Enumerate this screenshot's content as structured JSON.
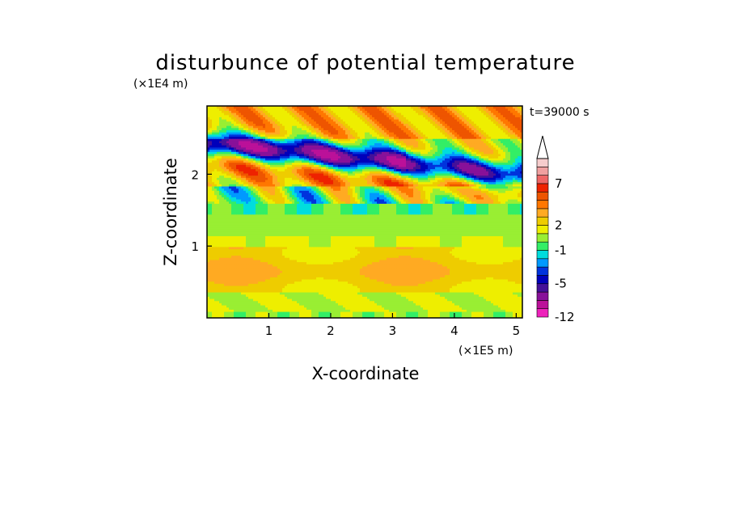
{
  "chart_data": {
    "type": "heatmap",
    "title": "disturbunce of potential temperature",
    "time_label": "t=39000 s",
    "xlabel": "X-coordinate",
    "ylabel": "Z-coordinate",
    "x_unit": "(×1E5 m)",
    "y_unit": "(×1E4 m)",
    "xlim": [
      0,
      5.1
    ],
    "ylim": [
      0,
      2.95
    ],
    "x_ticks": [
      "1",
      "2",
      "3",
      "4",
      "5"
    ],
    "y_ticks": [
      "1",
      "2"
    ],
    "x_tick_values": [
      1,
      2,
      3,
      4,
      5
    ],
    "y_tick_values": [
      1,
      2
    ],
    "colorbar": {
      "levels": [
        -12,
        -10,
        -8,
        -6,
        -5,
        -4,
        -3,
        -2,
        -1,
        0,
        1,
        2,
        3,
        4,
        5,
        6,
        7,
        8,
        9,
        10
      ],
      "labels": [
        "-12",
        "-5",
        "-1",
        "2",
        "7"
      ],
      "label_values": [
        -12,
        -5,
        -1,
        2,
        7
      ],
      "colors": [
        "#ee22bb",
        "#bb1199",
        "#881199",
        "#441199",
        "#0000bb",
        "#0033dd",
        "#0099ff",
        "#00dddd",
        "#33ee66",
        "#99ee33",
        "#eeee00",
        "#eecc00",
        "#ffaa22",
        "#ff7700",
        "#ee5500",
        "#ee2200",
        "#ee6666",
        "#f0a0a0",
        "#f6cccc"
      ],
      "extend": "max"
    },
    "field_description_rows": [
      {
        "z_range": [
          2.3,
          2.95
        ],
        "dominant_value": 4
      },
      {
        "z_range": [
          1.95,
          2.3
        ],
        "dominant_value": -5
      },
      {
        "z_range": [
          1.6,
          1.95
        ],
        "dominant_value": -1
      },
      {
        "z_range": [
          1.0,
          1.6
        ],
        "dominant_value": 1
      },
      {
        "z_range": [
          0.35,
          1.0
        ],
        "dominant_value": 3
      },
      {
        "z_range": [
          0.0,
          0.35
        ],
        "dominant_value": 1
      }
    ]
  }
}
